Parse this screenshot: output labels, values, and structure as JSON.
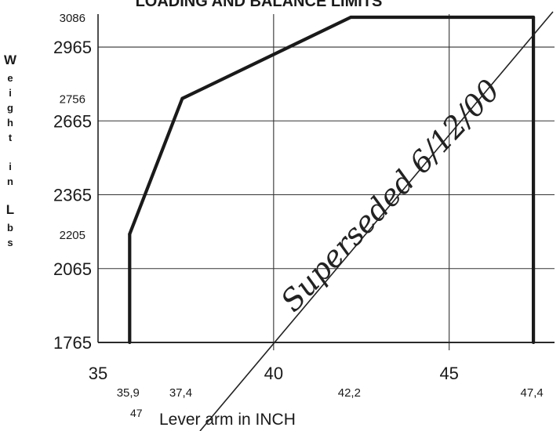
{
  "chart_data": {
    "type": "line",
    "title": "LOADING AND BALANCE LIMITS",
    "xlabel": "Lever arm in INCH",
    "ylabel": "Weight in Lbs",
    "xlim": [
      35,
      48
    ],
    "ylim": [
      1765,
      3086
    ],
    "grid": true,
    "x_major_ticks": [
      35,
      40,
      45
    ],
    "x_major_tick_labels": [
      "35",
      "40",
      "45"
    ],
    "x_minor_ticks": [
      35.9,
      37.4,
      42.2,
      47.4
    ],
    "x_minor_tick_labels": [
      "35,9",
      "37,4",
      "42,2",
      "47,4"
    ],
    "y_major_ticks": [
      1765,
      2065,
      2365,
      2665,
      2965
    ],
    "y_major_tick_labels": [
      "1765",
      "2065",
      "2365",
      "2665",
      "2965"
    ],
    "y_minor_ticks": [
      2205,
      2756,
      3086
    ],
    "y_minor_tick_labels": [
      "2205",
      "2756",
      "3086"
    ],
    "series": [
      {
        "points": [
          {
            "x": 35.9,
            "y": 1765
          },
          {
            "x": 35.9,
            "y": 2205
          },
          {
            "x": 37.4,
            "y": 2756
          },
          {
            "x": 42.2,
            "y": 3086
          },
          {
            "x": 47.4,
            "y": 3086
          },
          {
            "x": 47.4,
            "y": 1765
          }
        ],
        "color": "#1a1a1a"
      }
    ],
    "annotations": [
      {
        "text": "Superseded 6/12/00",
        "style": "handwritten diagonal overlay"
      },
      {
        "text": "47",
        "style": "partially visible label near bottom-left"
      }
    ]
  }
}
